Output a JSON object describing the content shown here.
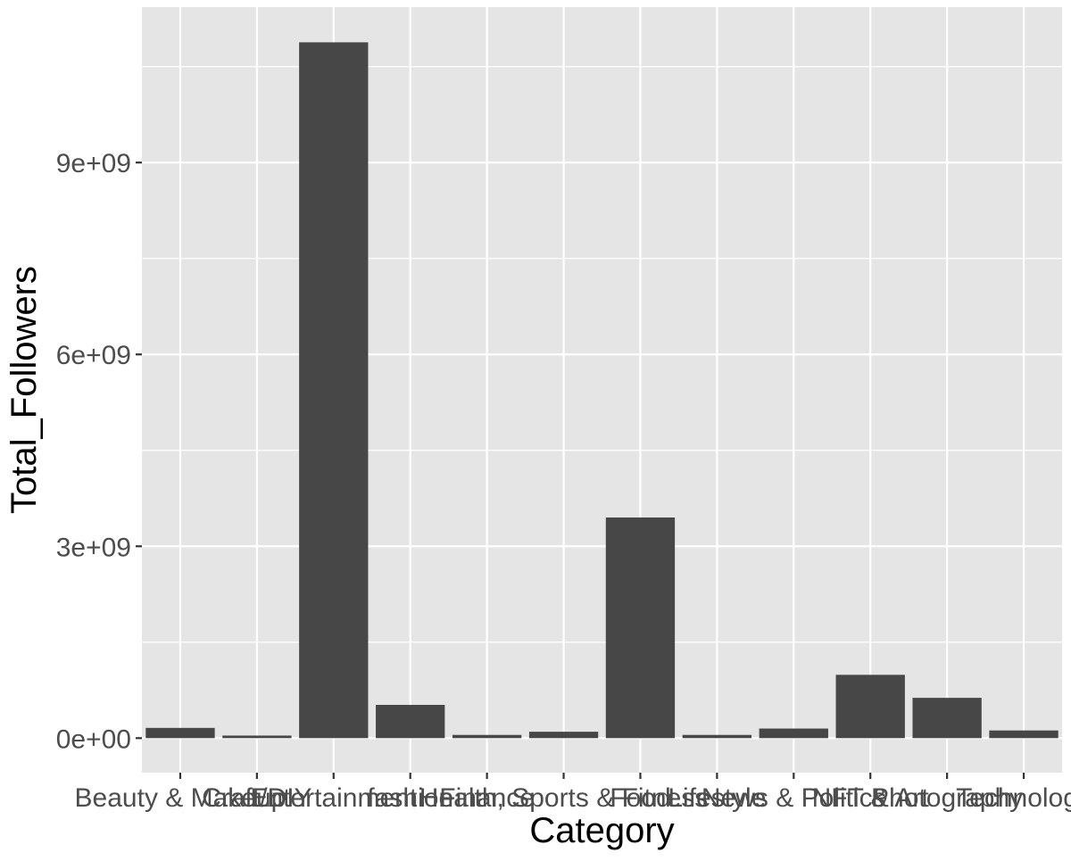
{
  "chart_data": {
    "type": "bar",
    "title": "",
    "xlabel": "Category",
    "ylabel": "Total_Followers",
    "categories": [
      "Beauty & Makeup",
      "Craft/DIY",
      "Entertainment",
      "fashion",
      "Finance",
      "Health, Sports & Fitness",
      "Food",
      "Lifestyle",
      "News & Politics",
      "NFT & Art",
      "Photography",
      "Technology"
    ],
    "values": [
      160000000,
      40000000,
      10880000000,
      520000000,
      50000000,
      100000000,
      3450000000,
      50000000,
      150000000,
      990000000,
      630000000,
      120000000
    ],
    "ylim": [
      -540000000,
      11430000000
    ],
    "yticks": [
      0,
      3000000000,
      6000000000,
      9000000000
    ],
    "ytick_labels": [
      "0e+00",
      "3e+09",
      "6e+09",
      "9e+09"
    ],
    "grid": true,
    "legend": "none",
    "colors": {
      "panel_background": "#e5e5e5",
      "grid": "#ffffff",
      "bar_fill": "#474747",
      "tick_text": "#4d4d4d",
      "tick_mark": "#333333"
    }
  }
}
